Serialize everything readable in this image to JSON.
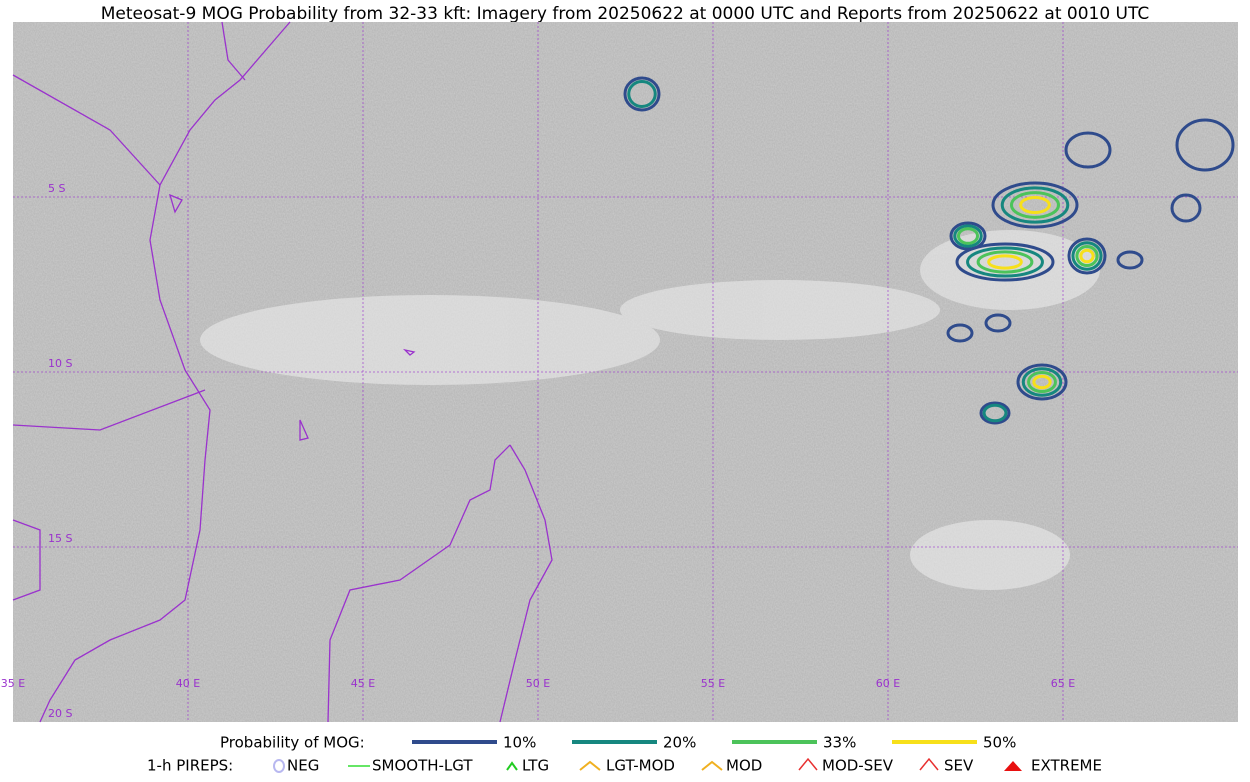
{
  "title": "Meteosat-9 MOG Probability from 32-33 kft: Imagery from 20250622 at 0000 UTC and Reports from 20250622 at 0010 UTC",
  "map": {
    "lat_labels": [
      "5 S",
      "10 S",
      "15 S",
      "20 S"
    ],
    "lon_labels": [
      "35 E",
      "40 E",
      "45 E",
      "50 E",
      "55 E",
      "60 E",
      "65 E"
    ]
  },
  "legend": {
    "probability": {
      "label": "Probability of MOG:",
      "items": [
        {
          "label": "10%",
          "color": "#2f4b8c"
        },
        {
          "label": "20%",
          "color": "#16877f"
        },
        {
          "label": "33%",
          "color": "#4cc35a"
        },
        {
          "label": "50%",
          "color": "#f7e01a"
        }
      ]
    },
    "pireps": {
      "label": "1-h PIREPS:",
      "items": [
        {
          "label": "NEG",
          "color": "#b8b8f0"
        },
        {
          "label": "SMOOTH-LGT",
          "color": "#33dd33"
        },
        {
          "label": "LTG",
          "color": "#22cc22"
        },
        {
          "label": "LGT-MOD",
          "color": "#f0b020"
        },
        {
          "label": "MOD",
          "color": "#f0b020"
        },
        {
          "label": "MOD-SEV",
          "color": "#e83030"
        },
        {
          "label": "SEV",
          "color": "#e83030"
        },
        {
          "label": "EXTREME",
          "color": "#e81010"
        }
      ]
    }
  }
}
